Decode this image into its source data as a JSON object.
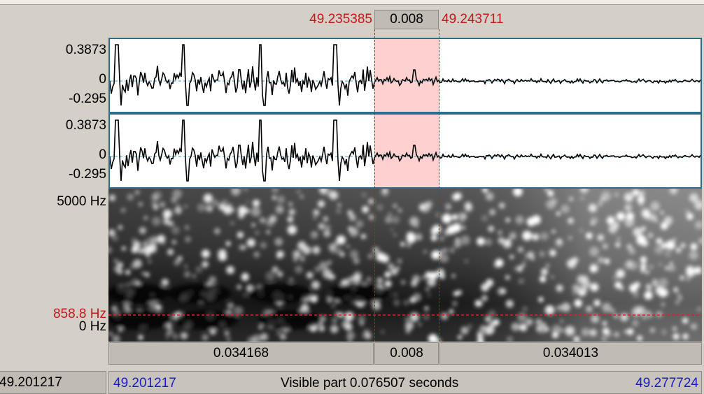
{
  "selection": {
    "start": "49.235385",
    "duration": "0.008",
    "end": "49.243711"
  },
  "waveform_channels": [
    {
      "max": "0.3873",
      "zero": "0",
      "min": "-0.295"
    },
    {
      "max": "0.3873",
      "zero": "0",
      "min": "-0.295"
    }
  ],
  "spectrogram": {
    "top_label": "5000 Hz",
    "cursor_label": "858.8 Hz",
    "bottom_label": "0 Hz"
  },
  "duration_bar": {
    "left": "0.034168",
    "selected": "0.008",
    "right": "0.034013"
  },
  "bottom_bar": {
    "total_start": "49.201217",
    "visible_start": "49.201217",
    "visible_label": "Visible part 0.076507 seconds",
    "visible_end": "49.277724"
  },
  "colors": {
    "selection_fill": "#ffd0d0",
    "cursor_red": "#c8181c",
    "panel_border": "#2a6e8c",
    "blue_text": "#1a1ad0"
  }
}
